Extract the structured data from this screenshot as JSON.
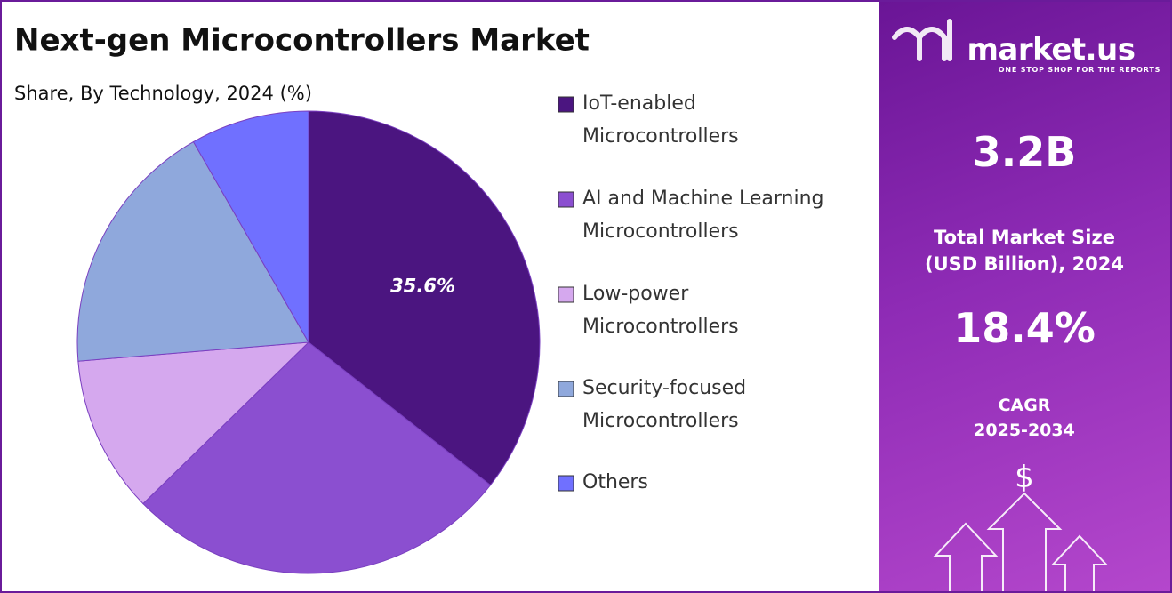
{
  "chart_data": {
    "type": "pie",
    "title": "Next-gen Microcontrollers Market",
    "subtitle": "Share, By Technology, 2024 (%)",
    "categories": [
      "IoT-enabled Microcontrollers",
      "AI and Machine Learning Microcontrollers",
      "Low-power Microcontrollers",
      "Security-focused Microcontrollers",
      "Others"
    ],
    "values": [
      35.6,
      27.1,
      11.0,
      18.0,
      8.3
    ],
    "value_labels": [
      "35.6%",
      null,
      null,
      null,
      null
    ],
    "colors": [
      "#4b1580",
      "#8b4fd0",
      "#d5a8ee",
      "#8fa8dc",
      "#7070ff"
    ],
    "legend": "right"
  },
  "sidebar": {
    "logo": "market.us",
    "tagline": "ONE STOP SHOP FOR THE REPORTS",
    "market_size": "3.2B",
    "market_size_label": [
      "Total Market Size",
      "(USD Billion), 2024"
    ],
    "cagr": "18.4%",
    "cagr_label": [
      "CAGR",
      "2025-2034"
    ],
    "icon": "$"
  }
}
